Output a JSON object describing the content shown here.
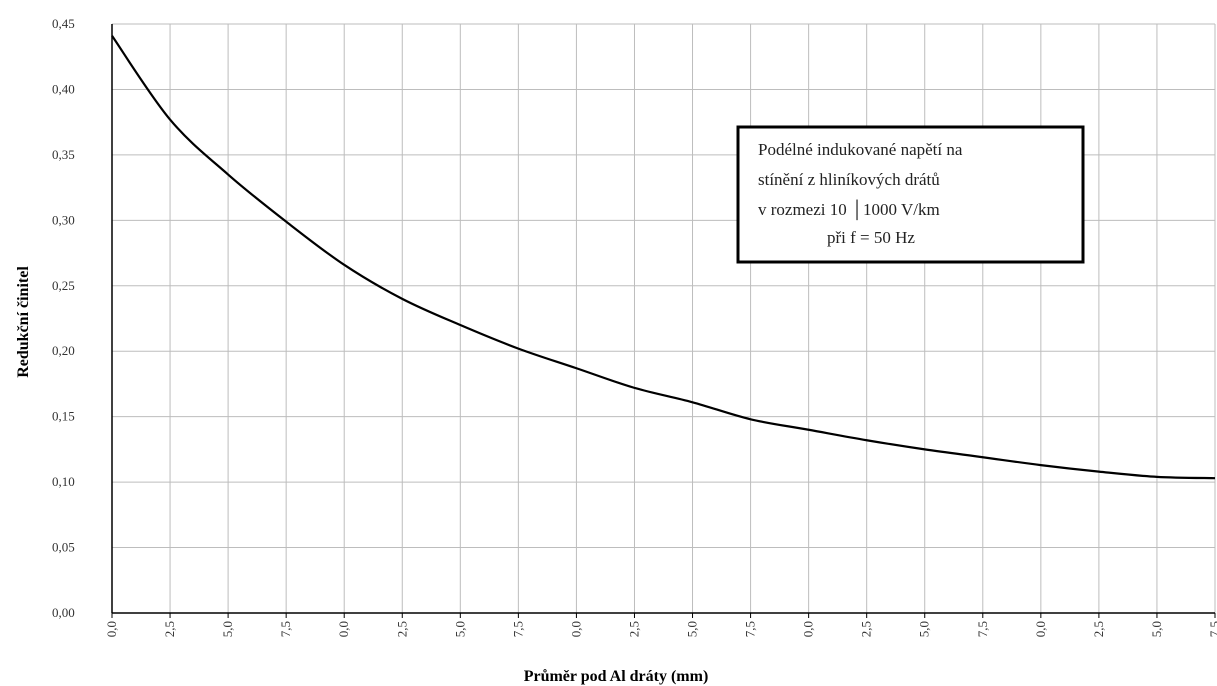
{
  "chart_data": {
    "type": "line",
    "xlabel": "Průměr pod Al dráty (mm)",
    "ylabel": "Redukční činitel",
    "xlim": [
      0,
      95
    ],
    "ylim": [
      0,
      0.45
    ],
    "grid": true,
    "x_tick_labels": [
      "0,0",
      "2,5",
      "5,0",
      "7,5",
      "0,0",
      "2,5",
      "5,0",
      "7,5",
      "0,0",
      "2,5",
      "5,0",
      "7,5",
      "0,0",
      "2,5",
      "5,0",
      "7,5",
      "0,0",
      "2,5",
      "5,0",
      "7,5"
    ],
    "y_ticks": [
      0.0,
      0.05,
      0.1,
      0.15,
      0.2,
      0.25,
      0.3,
      0.35,
      0.4,
      0.45
    ],
    "y_tick_labels": [
      "0,00",
      "0,05",
      "0,10",
      "0,15",
      "0,20",
      "0,25",
      "0,30",
      "0,35",
      "0,40",
      "0,45"
    ],
    "legend_box": {
      "position": "upper-right",
      "lines": [
        "Podélné indukované napětí na",
        "stínění z hliníkových drátů",
        "v rozmezi 10 │1000 V/km",
        "při f = 50 Hz"
      ]
    },
    "series": [
      {
        "x": [
          0,
          5,
          10,
          15,
          20,
          25,
          30,
          35,
          40,
          45,
          50,
          55,
          60,
          65,
          70,
          75,
          80,
          85,
          90,
          95
        ],
        "y": [
          0.441,
          0.377,
          0.335,
          0.299,
          0.266,
          0.24,
          0.22,
          0.202,
          0.187,
          0.172,
          0.161,
          0.148,
          0.14,
          0.132,
          0.125,
          0.119,
          0.113,
          0.108,
          0.104,
          0.103
        ]
      }
    ]
  }
}
